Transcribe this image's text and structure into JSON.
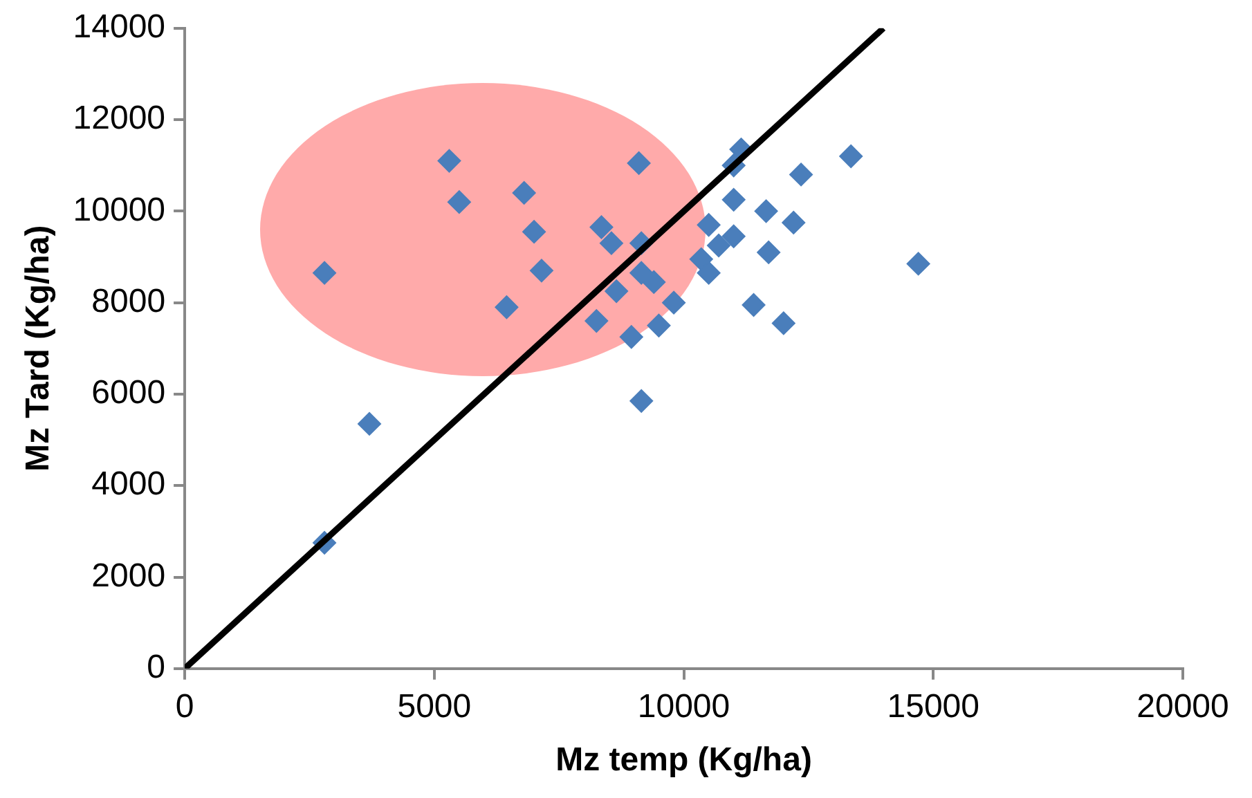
{
  "chart_data": {
    "type": "scatter",
    "xlabel": "Mz temp (Kg/ha)",
    "ylabel": "Mz Tard (Kg/ha)",
    "xlim": [
      0,
      20000
    ],
    "ylim": [
      0,
      14000
    ],
    "xticks": [
      0,
      5000,
      10000,
      15000,
      20000
    ],
    "yticks": [
      0,
      2000,
      4000,
      6000,
      8000,
      10000,
      12000,
      14000
    ],
    "grid": false,
    "legend": false,
    "marker": "diamond",
    "series": [
      {
        "color": "#4a7ebb",
        "x": [
          2800,
          3700,
          2800,
          5300,
          5500,
          6800,
          7000,
          7150,
          6450,
          8350,
          8550,
          9150,
          9150,
          8650,
          8250,
          8950,
          9150,
          9100,
          9400,
          9800,
          9500,
          11000,
          11150,
          11000,
          11650,
          12350,
          13350,
          12200,
          10500,
          11000,
          10700,
          10350,
          10500,
          11700,
          11400,
          12000,
          14700
        ],
        "values": [
          2750,
          5350,
          8650,
          11100,
          10200,
          10400,
          9550,
          8700,
          7900,
          9650,
          9300,
          9300,
          8650,
          8250,
          7600,
          7250,
          5850,
          11050,
          8450,
          8000,
          7500,
          11000,
          11350,
          10250,
          10000,
          10800,
          11200,
          9750,
          9700,
          9450,
          9250,
          8950,
          8650,
          9100,
          7950,
          7550,
          8850
        ]
      },
      {
        "type": "line",
        "color": "#000000",
        "x": [
          0,
          14000
        ],
        "values": [
          0,
          14000
        ],
        "marker": "none",
        "line_style": "solid"
      }
    ]
  }
}
